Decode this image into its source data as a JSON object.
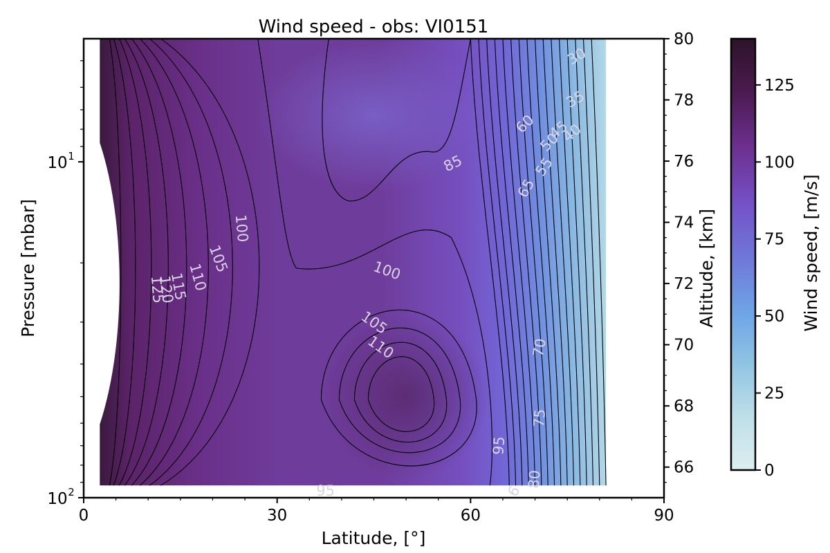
{
  "chart_data": {
    "type": "contour",
    "title": "Wind speed - obs: VI0151",
    "xlabel": "Latitude, [$^{\\circ}$]",
    "xlabel_text": "Latitude, [°]",
    "ylabel": "Pressure [mbar]",
    "ylabel_right": "Altitude, [km]",
    "colorbar_label": "Wind speed, [m/s]",
    "xlim": [
      0,
      90
    ],
    "xticks": [
      0,
      30,
      60,
      90
    ],
    "x_tick_labels": [
      "0",
      "30",
      "60",
      "90"
    ],
    "y_scale": "log",
    "ylim_pressure": [
      100,
      4.3
    ],
    "y_tick_labels": [
      {
        "base": "10",
        "exp": "1",
        "value": 10
      },
      {
        "base": "10",
        "exp": "2",
        "value": 100
      }
    ],
    "y_right_lim": [
      65,
      80
    ],
    "y_right_ticks": [
      66,
      68,
      70,
      72,
      74,
      76,
      78,
      80
    ],
    "colorbar_lim": [
      0,
      140
    ],
    "colorbar_ticks": [
      0,
      25,
      50,
      75,
      100,
      125
    ],
    "colormap": [
      "#dceef0",
      "#a6d4e2",
      "#6fa6e6",
      "#6f75d8",
      "#7550c6",
      "#6c2f8e",
      "#4a1a4e",
      "#2c1428"
    ],
    "contour_levels_labeled": [
      30,
      35,
      40,
      45,
      50,
      55,
      60,
      65,
      70,
      75,
      80,
      85,
      95,
      100,
      105,
      110,
      115,
      120,
      125
    ],
    "data_lat_range": [
      2.5,
      81
    ],
    "contour_labels": [
      {
        "text": "30",
        "lat": 76.5,
        "alt": 79.4,
        "rot": -30
      },
      {
        "text": "35",
        "lat": 76.3,
        "alt": 78.0,
        "rot": -30
      },
      {
        "text": "40",
        "lat": 75.8,
        "alt": 76.9,
        "rot": -40
      },
      {
        "text": "45",
        "lat": 73.7,
        "alt": 77.0,
        "rot": -40
      },
      {
        "text": "50",
        "lat": 72.3,
        "alt": 76.6,
        "rot": -45
      },
      {
        "text": "55",
        "lat": 71.5,
        "alt": 75.8,
        "rot": -55
      },
      {
        "text": "60",
        "lat": 68.5,
        "alt": 77.2,
        "rot": -45
      },
      {
        "text": "65",
        "lat": 68.7,
        "alt": 75.1,
        "rot": -60
      },
      {
        "text": "70",
        "lat": 70.8,
        "alt": 69.9,
        "rot": -80
      },
      {
        "text": "75",
        "lat": 70.8,
        "alt": 67.6,
        "rot": -85
      },
      {
        "text": "80",
        "lat": 70.0,
        "alt": 65.6,
        "rot": -85
      },
      {
        "text": "85",
        "lat": 57.3,
        "alt": 75.9,
        "rot": -25
      },
      {
        "text": "95",
        "lat": 64.5,
        "alt": 66.7,
        "rot": -85
      },
      {
        "text": "95",
        "lat": 37.5,
        "alt": 65.2,
        "rot": 0
      },
      {
        "text": "6",
        "lat": 66.8,
        "alt": 65.2,
        "rot": -60
      },
      {
        "text": "100",
        "lat": 24.4,
        "alt": 73.8,
        "rot": 85
      },
      {
        "text": "100",
        "lat": 47.0,
        "alt": 72.4,
        "rot": 20
      },
      {
        "text": "105",
        "lat": 20.8,
        "alt": 72.8,
        "rot": 70
      },
      {
        "text": "105",
        "lat": 45.0,
        "alt": 70.7,
        "rot": 35
      },
      {
        "text": "110",
        "lat": 17.6,
        "alt": 72.2,
        "rot": 75
      },
      {
        "text": "110",
        "lat": 46.0,
        "alt": 69.9,
        "rot": 35
      },
      {
        "text": "115",
        "lat": 14.6,
        "alt": 71.9,
        "rot": 80
      },
      {
        "text": "120",
        "lat": 12.7,
        "alt": 71.8,
        "rot": 82
      },
      {
        "text": "125",
        "lat": 11.3,
        "alt": 71.8,
        "rot": 85
      }
    ]
  }
}
